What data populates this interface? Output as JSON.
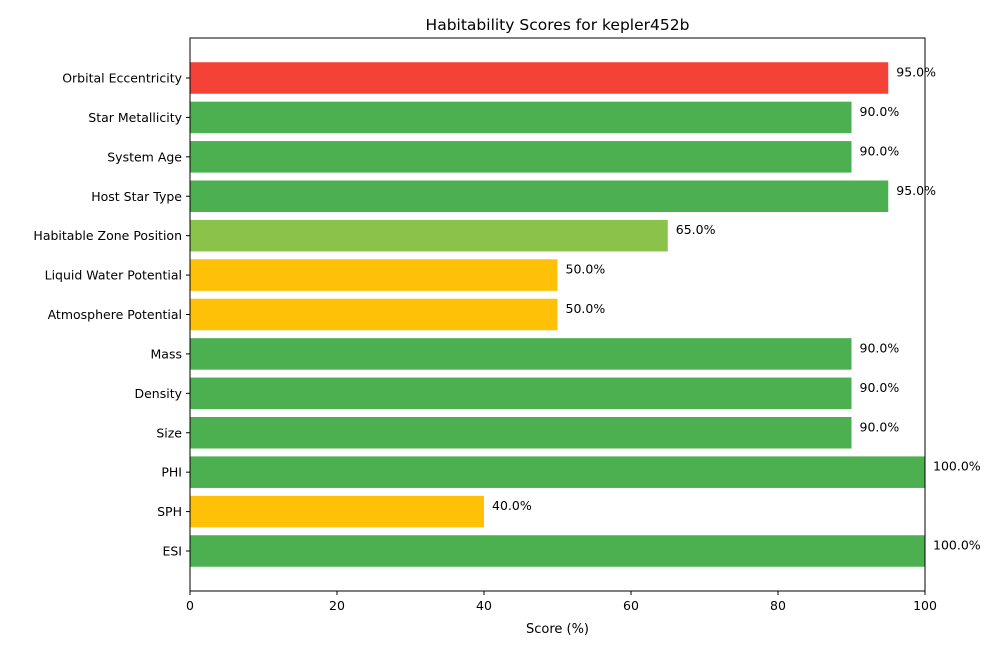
{
  "chart_data": {
    "type": "bar",
    "orientation": "horizontal",
    "title": "Habitability Scores for kepler452b",
    "xlabel": "Score (%)",
    "ylabel": "",
    "xlim": [
      0,
      100
    ],
    "xticks": [
      0,
      20,
      40,
      60,
      80,
      100
    ],
    "grid": false,
    "categories": [
      "ESI",
      "SPH",
      "PHI",
      "Size",
      "Density",
      "Mass",
      "Atmosphere Potential",
      "Liquid Water Potential",
      "Habitable Zone Position",
      "Host Star Type",
      "System Age",
      "Star Metallicity",
      "Orbital Eccentricity"
    ],
    "values": [
      100,
      40,
      100,
      90,
      90,
      90,
      50,
      50,
      65,
      95,
      90,
      90,
      95
    ],
    "value_labels": [
      "100.0%",
      "40.0%",
      "100.0%",
      "90.0%",
      "90.0%",
      "90.0%",
      "50.0%",
      "50.0%",
      "65.0%",
      "95.0%",
      "90.0%",
      "90.0%",
      "95.0%"
    ],
    "colors": [
      "#4CAF50",
      "#FFC107",
      "#4CAF50",
      "#4CAF50",
      "#4CAF50",
      "#4CAF50",
      "#FFC107",
      "#FFC107",
      "#8BC34A",
      "#4CAF50",
      "#4CAF50",
      "#4CAF50",
      "#F44336"
    ]
  }
}
